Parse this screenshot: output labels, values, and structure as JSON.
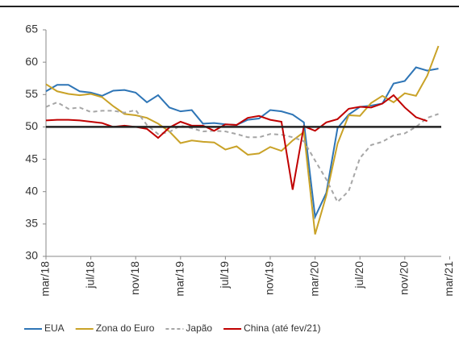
{
  "chart_data": {
    "type": "line",
    "categories": [
      "mar/18",
      null,
      null,
      null,
      "jul/18",
      null,
      null,
      null,
      "nov/18",
      null,
      null,
      null,
      "mar/19",
      null,
      null,
      null,
      "jul/19",
      null,
      null,
      null,
      "nov/19",
      null,
      null,
      null,
      "mar/20",
      null,
      null,
      null,
      "jul/20",
      null,
      null,
      null,
      "nov/20",
      null,
      null,
      null,
      "mar/21"
    ],
    "series": [
      {
        "name": "EUA",
        "color": "#2e75b6",
        "dash": false,
        "values": [
          55.5,
          56.5,
          56.5,
          55.5,
          55.3,
          54.8,
          55.6,
          55.7,
          55.3,
          53.8,
          54.9,
          53.0,
          52.4,
          52.6,
          50.5,
          50.6,
          50.4,
          50.3,
          51.1,
          51.3,
          52.6,
          52.4,
          51.9,
          50.7,
          36.1,
          39.8,
          49.8,
          51.9,
          53.1,
          53.3,
          53.6,
          56.7,
          57.1,
          59.2,
          58.7,
          59.0,
          null
        ]
      },
      {
        "name": "Zona do Euro",
        "color": "#c9a227",
        "dash": false,
        "values": [
          56.6,
          55.5,
          55.1,
          54.9,
          55.1,
          54.6,
          53.2,
          52.0,
          51.8,
          51.4,
          50.5,
          49.3,
          47.5,
          47.9,
          47.7,
          47.6,
          46.5,
          47.0,
          45.7,
          45.9,
          46.9,
          46.3,
          47.9,
          49.2,
          33.4,
          39.4,
          47.4,
          51.8,
          51.7,
          53.7,
          54.8,
          53.8,
          55.2,
          54.8,
          57.9,
          62.5,
          null
        ]
      },
      {
        "name": "Japão",
        "color": "#a6a6a6",
        "dash": true,
        "values": [
          53.1,
          53.8,
          52.8,
          53.0,
          52.3,
          52.5,
          52.5,
          52.2,
          52.6,
          50.3,
          48.9,
          49.2,
          50.2,
          49.8,
          49.3,
          49.4,
          49.3,
          48.9,
          48.4,
          48.4,
          48.9,
          48.8,
          48.4,
          47.8,
          44.8,
          41.9,
          38.4,
          40.1,
          45.2,
          47.2,
          47.7,
          48.7,
          49.0,
          50.0,
          51.4,
          52.0,
          null
        ]
      },
      {
        "name": "China (até fev/21)",
        "color": "#c00000",
        "dash": false,
        "values": [
          51.0,
          51.1,
          51.1,
          51.0,
          50.8,
          50.6,
          50.0,
          50.2,
          50.0,
          49.7,
          48.3,
          49.9,
          50.8,
          50.2,
          50.2,
          49.4,
          50.4,
          50.3,
          51.4,
          51.7,
          51.1,
          50.8,
          40.3,
          50.1,
          49.4,
          50.7,
          51.2,
          52.8,
          53.1,
          53.0,
          53.6,
          54.9,
          53.0,
          51.5,
          50.9,
          null,
          null
        ]
      }
    ],
    "ylim": [
      30,
      65
    ],
    "yticks": [
      30,
      35,
      40,
      45,
      50,
      55,
      60,
      65
    ],
    "hline": 50,
    "grid": false
  }
}
